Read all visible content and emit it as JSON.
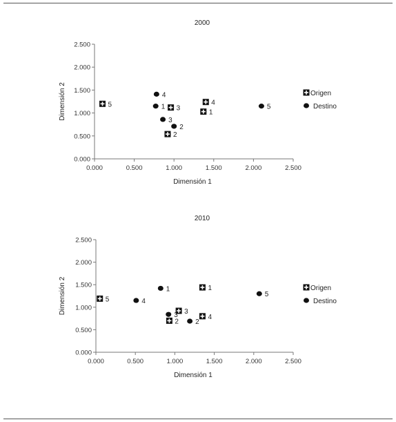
{
  "chart_data": [
    {
      "type": "scatter",
      "title": "2000",
      "xlabel": "Dimensión 1",
      "ylabel": "Dimensión 2",
      "xlim": [
        0,
        2.5
      ],
      "ylim": [
        0,
        2.5
      ],
      "xticks": [
        "0.000",
        "0.500",
        "1.000",
        "1.500",
        "2.000",
        "2.500"
      ],
      "yticks": [
        "0.000",
        "0.500",
        "1.000",
        "1.500",
        "2.000",
        "2.500"
      ],
      "legend_position": "right",
      "series": [
        {
          "name": "Origen",
          "marker": "square-plus",
          "points": [
            {
              "label": "1",
              "x": 1.37,
              "y": 1.03
            },
            {
              "label": "2",
              "x": 0.92,
              "y": 0.54
            },
            {
              "label": "3",
              "x": 0.96,
              "y": 1.12
            },
            {
              "label": "4",
              "x": 1.4,
              "y": 1.24
            },
            {
              "label": "5",
              "x": 0.1,
              "y": 1.2
            }
          ]
        },
        {
          "name": "Destino",
          "marker": "dot",
          "points": [
            {
              "label": "1",
              "x": 0.77,
              "y": 1.15
            },
            {
              "label": "2",
              "x": 1.0,
              "y": 0.71
            },
            {
              "label": "3",
              "x": 0.86,
              "y": 0.86
            },
            {
              "label": "4",
              "x": 0.78,
              "y": 1.41
            },
            {
              "label": "5",
              "x": 2.1,
              "y": 1.15
            }
          ]
        }
      ]
    },
    {
      "type": "scatter",
      "title": "2010",
      "xlabel": "Dimensión 1",
      "ylabel": "Dimensión 2",
      "xlim": [
        0,
        2.5
      ],
      "ylim": [
        0,
        2.5
      ],
      "xticks": [
        "0.000",
        "0.500",
        "1.000",
        "1.500",
        "2.000",
        "2.500"
      ],
      "yticks": [
        "0.000",
        "0.500",
        "1.000",
        "1.500",
        "2.000",
        "2.500"
      ],
      "legend_position": "right",
      "series": [
        {
          "name": "Origen",
          "marker": "square-plus",
          "points": [
            {
              "label": "1",
              "x": 1.35,
              "y": 1.44
            },
            {
              "label": "2",
              "x": 0.93,
              "y": 0.7
            },
            {
              "label": "3",
              "x": 1.05,
              "y": 0.92
            },
            {
              "label": "4",
              "x": 1.35,
              "y": 0.8
            },
            {
              "label": "5",
              "x": 0.05,
              "y": 1.19
            }
          ]
        },
        {
          "name": "Destino",
          "marker": "dot",
          "points": [
            {
              "label": "1",
              "x": 0.82,
              "y": 1.42
            },
            {
              "label": "2",
              "x": 1.19,
              "y": 0.69
            },
            {
              "label": "3",
              "x": 0.92,
              "y": 0.84
            },
            {
              "label": "4",
              "x": 0.51,
              "y": 1.15
            },
            {
              "label": "5",
              "x": 2.07,
              "y": 1.3
            }
          ]
        }
      ]
    }
  ]
}
